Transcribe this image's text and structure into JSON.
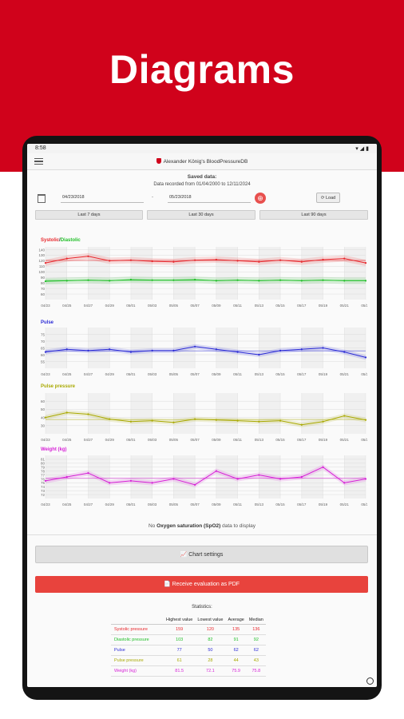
{
  "banner": {
    "title": "Diagrams"
  },
  "statusbar": {
    "time": "8:58"
  },
  "app": {
    "title": "Alexander König's BloodPressureDB"
  },
  "saved": {
    "label": "Saved data:",
    "range": "Data recorded from 01/04/2000 to 12/11/2024"
  },
  "date_from": "04/23/2018",
  "date_to": "05/23/2018",
  "load_label": "⟳ Load",
  "ranges": [
    "Last 7 days",
    "Last 30 days",
    "Last 90 days"
  ],
  "x_ticks": [
    "04/23",
    "04/25",
    "04/27",
    "04/29",
    "05/01",
    "05/03",
    "05/05",
    "05/07",
    "05/09",
    "05/11",
    "05/13",
    "05/15",
    "05/17",
    "05/19",
    "05/21",
    "05/23"
  ],
  "colors": {
    "systolic": "#e8262b",
    "diastolic": "#1fbf27",
    "pulse": "#2b2bd6",
    "pulse_pressure": "#a9a900",
    "weight": "#d61fd6",
    "accent": "#d0021b"
  },
  "chart_data": [
    {
      "type": "line",
      "title_parts": [
        "Systolic",
        "/",
        "Diastolic"
      ],
      "ylim": [
        50,
        145
      ],
      "y_ticks": [
        "140",
        "130",
        "120",
        "110",
        "100",
        "90",
        "80",
        "70",
        "60"
      ],
      "x": [
        "04/23",
        "04/25",
        "04/27",
        "04/29",
        "05/01",
        "05/03",
        "05/05",
        "05/07",
        "05/09",
        "05/11",
        "05/13",
        "05/15",
        "05/17",
        "05/19",
        "05/21",
        "05/23"
      ],
      "series": [
        {
          "name": "Systolic",
          "values": [
            116,
            124,
            128,
            120,
            121,
            119,
            118,
            121,
            122,
            120,
            118,
            121,
            118,
            122,
            124,
            116
          ]
        },
        {
          "name": "Diastolic",
          "values": [
            83,
            84,
            85,
            84,
            86,
            85,
            85,
            86,
            84,
            85,
            84,
            85,
            84,
            85,
            84,
            84
          ]
        }
      ]
    },
    {
      "type": "line",
      "title": "Pulse",
      "ylim": [
        50,
        80
      ],
      "y_ticks": [
        "75",
        "70",
        "65",
        "60",
        "55"
      ],
      "x": [
        "04/23",
        "04/25",
        "04/27",
        "04/29",
        "05/01",
        "05/03",
        "05/05",
        "05/07",
        "05/09",
        "05/11",
        "05/13",
        "05/15",
        "05/17",
        "05/19",
        "05/21",
        "05/23"
      ],
      "series": [
        {
          "name": "Pulse",
          "values": [
            62,
            64,
            63,
            64,
            62,
            63,
            63,
            66,
            64,
            62,
            60,
            63,
            64,
            65,
            62,
            58
          ]
        }
      ]
    },
    {
      "type": "line",
      "title": "Pulse pressure",
      "ylim": [
        20,
        70
      ],
      "y_ticks": [
        "60",
        "50",
        "40",
        "30"
      ],
      "x": [
        "04/23",
        "04/25",
        "04/27",
        "04/29",
        "05/01",
        "05/03",
        "05/05",
        "05/07",
        "05/09",
        "05/11",
        "05/13",
        "05/15",
        "05/17",
        "05/19",
        "05/21",
        "05/23"
      ],
      "series": [
        {
          "name": "Pulse pressure",
          "values": [
            40,
            46,
            44,
            38,
            35,
            36,
            34,
            38,
            37,
            36,
            35,
            36,
            31,
            35,
            42,
            37
          ]
        }
      ]
    },
    {
      "type": "line",
      "title": "Weight (kg)",
      "ylim": [
        71,
        82
      ],
      "y_ticks": [
        "81",
        "80",
        "79",
        "78",
        "77",
        "76",
        "75",
        "74",
        "73",
        "72"
      ],
      "x": [
        "04/23",
        "04/25",
        "04/27",
        "04/29",
        "05/01",
        "05/03",
        "05/05",
        "05/07",
        "05/09",
        "05/11",
        "05/13",
        "05/15",
        "05/17",
        "05/19",
        "05/21",
        "05/23"
      ],
      "series": [
        {
          "name": "Weight",
          "values": [
            75.5,
            76.5,
            77.5,
            75,
            75.5,
            75,
            76,
            74.5,
            78,
            76,
            77,
            76,
            76.5,
            79,
            75,
            76
          ]
        }
      ]
    }
  ],
  "nodata": {
    "prefix": "No ",
    "bold": "Oxygen saturation (SpO2)",
    "suffix": " data to display"
  },
  "settings_label": "📈 Chart settings",
  "pdf_label": "📄 Receive evaluation as PDF",
  "stats": {
    "title": "Statistics:",
    "headers": [
      "",
      "Highest value",
      "Lowest value",
      "Average",
      "Median"
    ],
    "rows": [
      {
        "label": "Systolic pressure",
        "vals": [
          "159",
          "120",
          "135",
          "136"
        ]
      },
      {
        "label": "Diastolic pressure",
        "vals": [
          "103",
          "82",
          "91",
          "92"
        ]
      },
      {
        "label": "Pulse",
        "vals": [
          "77",
          "50",
          "62",
          "62"
        ]
      },
      {
        "label": "Pulse pressure",
        "vals": [
          "61",
          "28",
          "44",
          "43"
        ]
      },
      {
        "label": "Weight (kg)",
        "vals": [
          "81.5",
          "72.1",
          "75.9",
          "75.8"
        ]
      }
    ]
  }
}
